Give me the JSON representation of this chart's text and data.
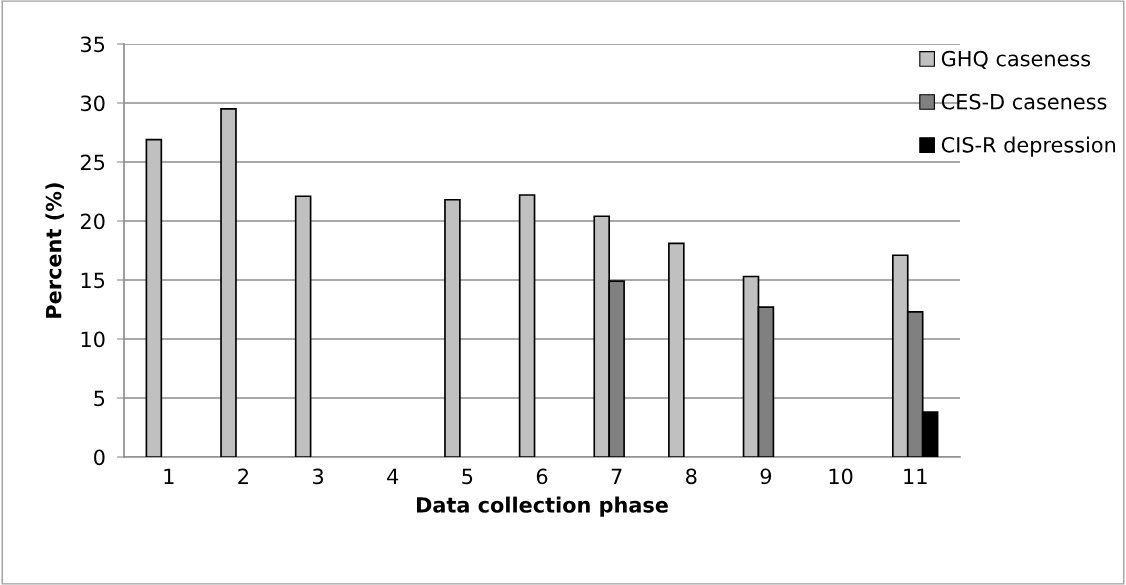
{
  "chart_data": {
    "type": "bar",
    "xlabel": "Data collection phase",
    "ylabel": "Percent (%)",
    "categories": [
      "1",
      "2",
      "3",
      "4",
      "5",
      "6",
      "7",
      "8",
      "9",
      "10",
      "11"
    ],
    "series": [
      {
        "name": "GHQ caseness",
        "color": "#c0c0c0",
        "values": [
          26.9,
          29.5,
          22.1,
          null,
          21.8,
          22.2,
          20.4,
          18.1,
          15.3,
          null,
          17.1
        ]
      },
      {
        "name": "CES-D caseness",
        "color": "#808080",
        "values": [
          null,
          null,
          null,
          null,
          null,
          null,
          14.9,
          null,
          12.7,
          null,
          12.3
        ]
      },
      {
        "name": "CIS-R depression",
        "color": "#000000",
        "values": [
          null,
          null,
          null,
          null,
          null,
          null,
          null,
          null,
          null,
          null,
          3.8
        ]
      }
    ],
    "ylim": [
      0,
      35
    ],
    "yticks": [
      0,
      5,
      10,
      15,
      20,
      25,
      30,
      35
    ],
    "grid": "y",
    "legend": "top right"
  }
}
